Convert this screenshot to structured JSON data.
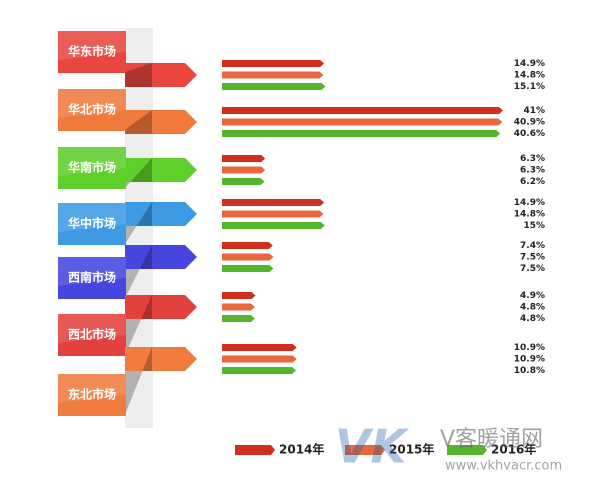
{
  "chart_data": {
    "type": "bar",
    "orientation": "horizontal",
    "categories": [
      "华东市场",
      "华北市场",
      "华南市场",
      "华中市场",
      "西南市场",
      "西北市场",
      "东北市场"
    ],
    "category_colors": [
      "#e8463f",
      "#ef7a3c",
      "#5fcf2c",
      "#3c9be3",
      "#4646de",
      "#e2413d",
      "#f07d3e"
    ],
    "series": [
      {
        "name": "2014年",
        "color": "#cf2f1c",
        "values": [
          14.9,
          41,
          6.3,
          14.9,
          7.4,
          4.9,
          10.9
        ],
        "value_labels": [
          "14.9%",
          "41%",
          "6.3%",
          "14.9%",
          "7.4%",
          "4.9%",
          "10.9%"
        ]
      },
      {
        "name": "2015年",
        "color": "#e8673c",
        "values": [
          14.8,
          40.9,
          6.3,
          14.8,
          7.5,
          4.8,
          10.9
        ],
        "value_labels": [
          "14.8%",
          "40.9%",
          "6.3%",
          "14.8%",
          "7.5%",
          "4.8%",
          "10.9%"
        ]
      },
      {
        "name": "2016年",
        "color": "#55b52b",
        "values": [
          15.1,
          40.6,
          6.2,
          15,
          7.5,
          4.8,
          10.8
        ],
        "value_labels": [
          "15.1%",
          "40.6%",
          "6.2%",
          "15%",
          "7.5%",
          "4.8%",
          "10.8%"
        ]
      }
    ],
    "legend": "bottom"
  },
  "watermark": {
    "logo": "VK",
    "brand": "V客暖通网",
    "url": "www.vkhvacr.com"
  }
}
